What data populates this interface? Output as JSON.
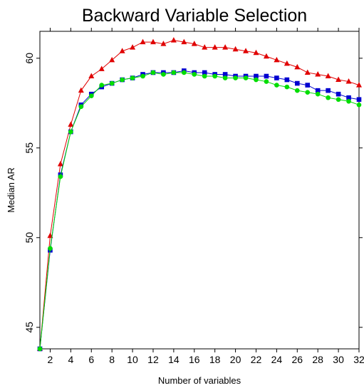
{
  "chart_data": {
    "type": "line",
    "title": "Backward Variable Selection",
    "xlabel": "Number of variables",
    "ylabel": "Median AR",
    "x": [
      1,
      2,
      3,
      4,
      5,
      6,
      7,
      8,
      9,
      10,
      11,
      12,
      13,
      14,
      15,
      16,
      17,
      18,
      19,
      20,
      21,
      22,
      23,
      24,
      25,
      26,
      27,
      28,
      29,
      30,
      31,
      32
    ],
    "xlim": [
      1,
      32
    ],
    "ylim": [
      43.8,
      61.5
    ],
    "x_ticks": [
      "2",
      "4",
      "6",
      "8",
      "10",
      "12",
      "14",
      "16",
      "18",
      "20",
      "22",
      "24",
      "26",
      "28",
      "30",
      "32"
    ],
    "y_ticks": [
      "45",
      "50",
      "55",
      "60"
    ],
    "grid": false,
    "series": [
      {
        "marker": "triangle",
        "color": "#e00000",
        "values": [
          43.8,
          50.1,
          54.1,
          56.3,
          58.2,
          59.0,
          59.4,
          59.9,
          60.4,
          60.6,
          60.9,
          60.9,
          60.8,
          61.0,
          60.9,
          60.8,
          60.6,
          60.6,
          60.6,
          60.5,
          60.4,
          60.3,
          60.1,
          59.9,
          59.7,
          59.5,
          59.2,
          59.1,
          59.0,
          58.8,
          58.7,
          58.5
        ]
      },
      {
        "marker": "square",
        "color": "#0000d0",
        "values": [
          43.8,
          49.3,
          53.5,
          55.9,
          57.4,
          58.0,
          58.4,
          58.6,
          58.8,
          58.9,
          59.1,
          59.2,
          59.2,
          59.2,
          59.3,
          59.2,
          59.2,
          59.1,
          59.1,
          59.0,
          59.0,
          59.0,
          59.0,
          58.9,
          58.8,
          58.6,
          58.5,
          58.2,
          58.2,
          58.0,
          57.8,
          57.7
        ]
      },
      {
        "marker": "circle",
        "color": "#00dd00",
        "values": [
          43.8,
          49.4,
          53.4,
          55.9,
          57.3,
          57.9,
          58.5,
          58.6,
          58.8,
          58.9,
          59.0,
          59.2,
          59.1,
          59.2,
          59.2,
          59.1,
          59.0,
          59.0,
          58.9,
          58.9,
          58.9,
          58.8,
          58.7,
          58.5,
          58.4,
          58.2,
          58.1,
          58.0,
          57.8,
          57.7,
          57.6,
          57.4
        ]
      }
    ]
  }
}
